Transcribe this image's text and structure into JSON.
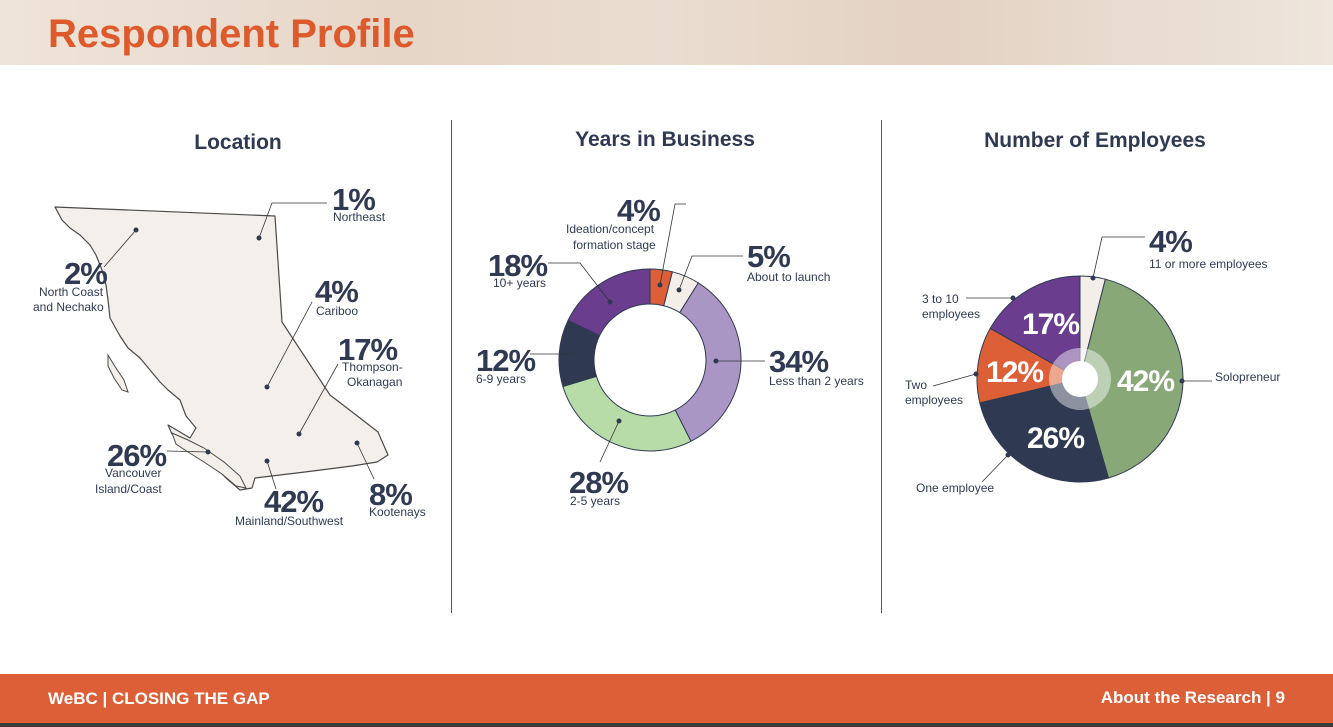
{
  "header": {
    "title": "Respondent Profile"
  },
  "footer": {
    "left": "WeBC | CLOSING THE GAP",
    "right": "About the Research | 9"
  },
  "chart_data": [
    {
      "type": "map",
      "title": "Location",
      "regions": [
        {
          "pct": "1%",
          "name": "Northeast",
          "value": 1
        },
        {
          "pct": "2%",
          "name": "North Coast and Nechako",
          "value": 2
        },
        {
          "pct": "4%",
          "name": "Cariboo",
          "value": 4
        },
        {
          "pct": "17%",
          "name": "Thompson-Okanagan",
          "value": 17
        },
        {
          "pct": "26%",
          "name": "Vancouver Island/Coast",
          "value": 26
        },
        {
          "pct": "42%",
          "name": "Mainland/Southwest",
          "value": 42
        },
        {
          "pct": "8%",
          "name": "Kootenays",
          "value": 8
        }
      ],
      "label_lines": {
        "northeast": [
          "Northeast"
        ],
        "north_coast": [
          "North Coast",
          "and Nechako"
        ],
        "cariboo": [
          "Cariboo"
        ],
        "thompson": [
          "Thompson-",
          "Okanagan"
        ],
        "vancouver": [
          "Vancouver",
          "Island/Coast"
        ],
        "mainland": [
          "Mainland/Southwest"
        ],
        "kootenays": [
          "Kootenays"
        ]
      }
    },
    {
      "type": "pie",
      "title": "Years in Business",
      "slices": [
        {
          "pct": "4%",
          "label": "Ideation/concept formation stage",
          "value": 4,
          "color": "#dd5f37"
        },
        {
          "pct": "5%",
          "label": "About to launch",
          "value": 5,
          "color": "#f3efe8"
        },
        {
          "pct": "34%",
          "label": "Less than 2 years",
          "value": 34,
          "color": "#a996c4"
        },
        {
          "pct": "28%",
          "label": "2-5 years",
          "value": 28,
          "color": "#b7dca8"
        },
        {
          "pct": "12%",
          "label": "6-9 years",
          "value": 12,
          "color": "#2f3a52"
        },
        {
          "pct": "18%",
          "label": "10+ years",
          "value": 18,
          "color": "#6a3d8f"
        }
      ],
      "label_lines": {
        "ideation": [
          "Ideation/concept",
          "formation stage"
        ]
      }
    },
    {
      "type": "pie",
      "title": "Number of Employees",
      "slices": [
        {
          "pct": "4%",
          "label": "11 or more employees",
          "value": 4,
          "color": "#f3efe8"
        },
        {
          "pct": "42%",
          "label": "Solopreneur",
          "value": 42,
          "color": "#88a878"
        },
        {
          "pct": "26%",
          "label": "One employee",
          "value": 26,
          "color": "#2f3a52"
        },
        {
          "pct": "12%",
          "label": "Two employees",
          "value": 12,
          "color": "#dd5f37"
        },
        {
          "pct": "17%",
          "label": "3 to 10 employees",
          "value": 17,
          "color": "#6a3d8f"
        }
      ],
      "label_lines": {
        "three_to_ten": [
          "3 to 10",
          "employees"
        ],
        "two": [
          "Two",
          "employees"
        ]
      }
    }
  ],
  "colors": {
    "accent": "#dd5f37",
    "text": "#2f3a52",
    "map_fill": "#f3efea"
  }
}
